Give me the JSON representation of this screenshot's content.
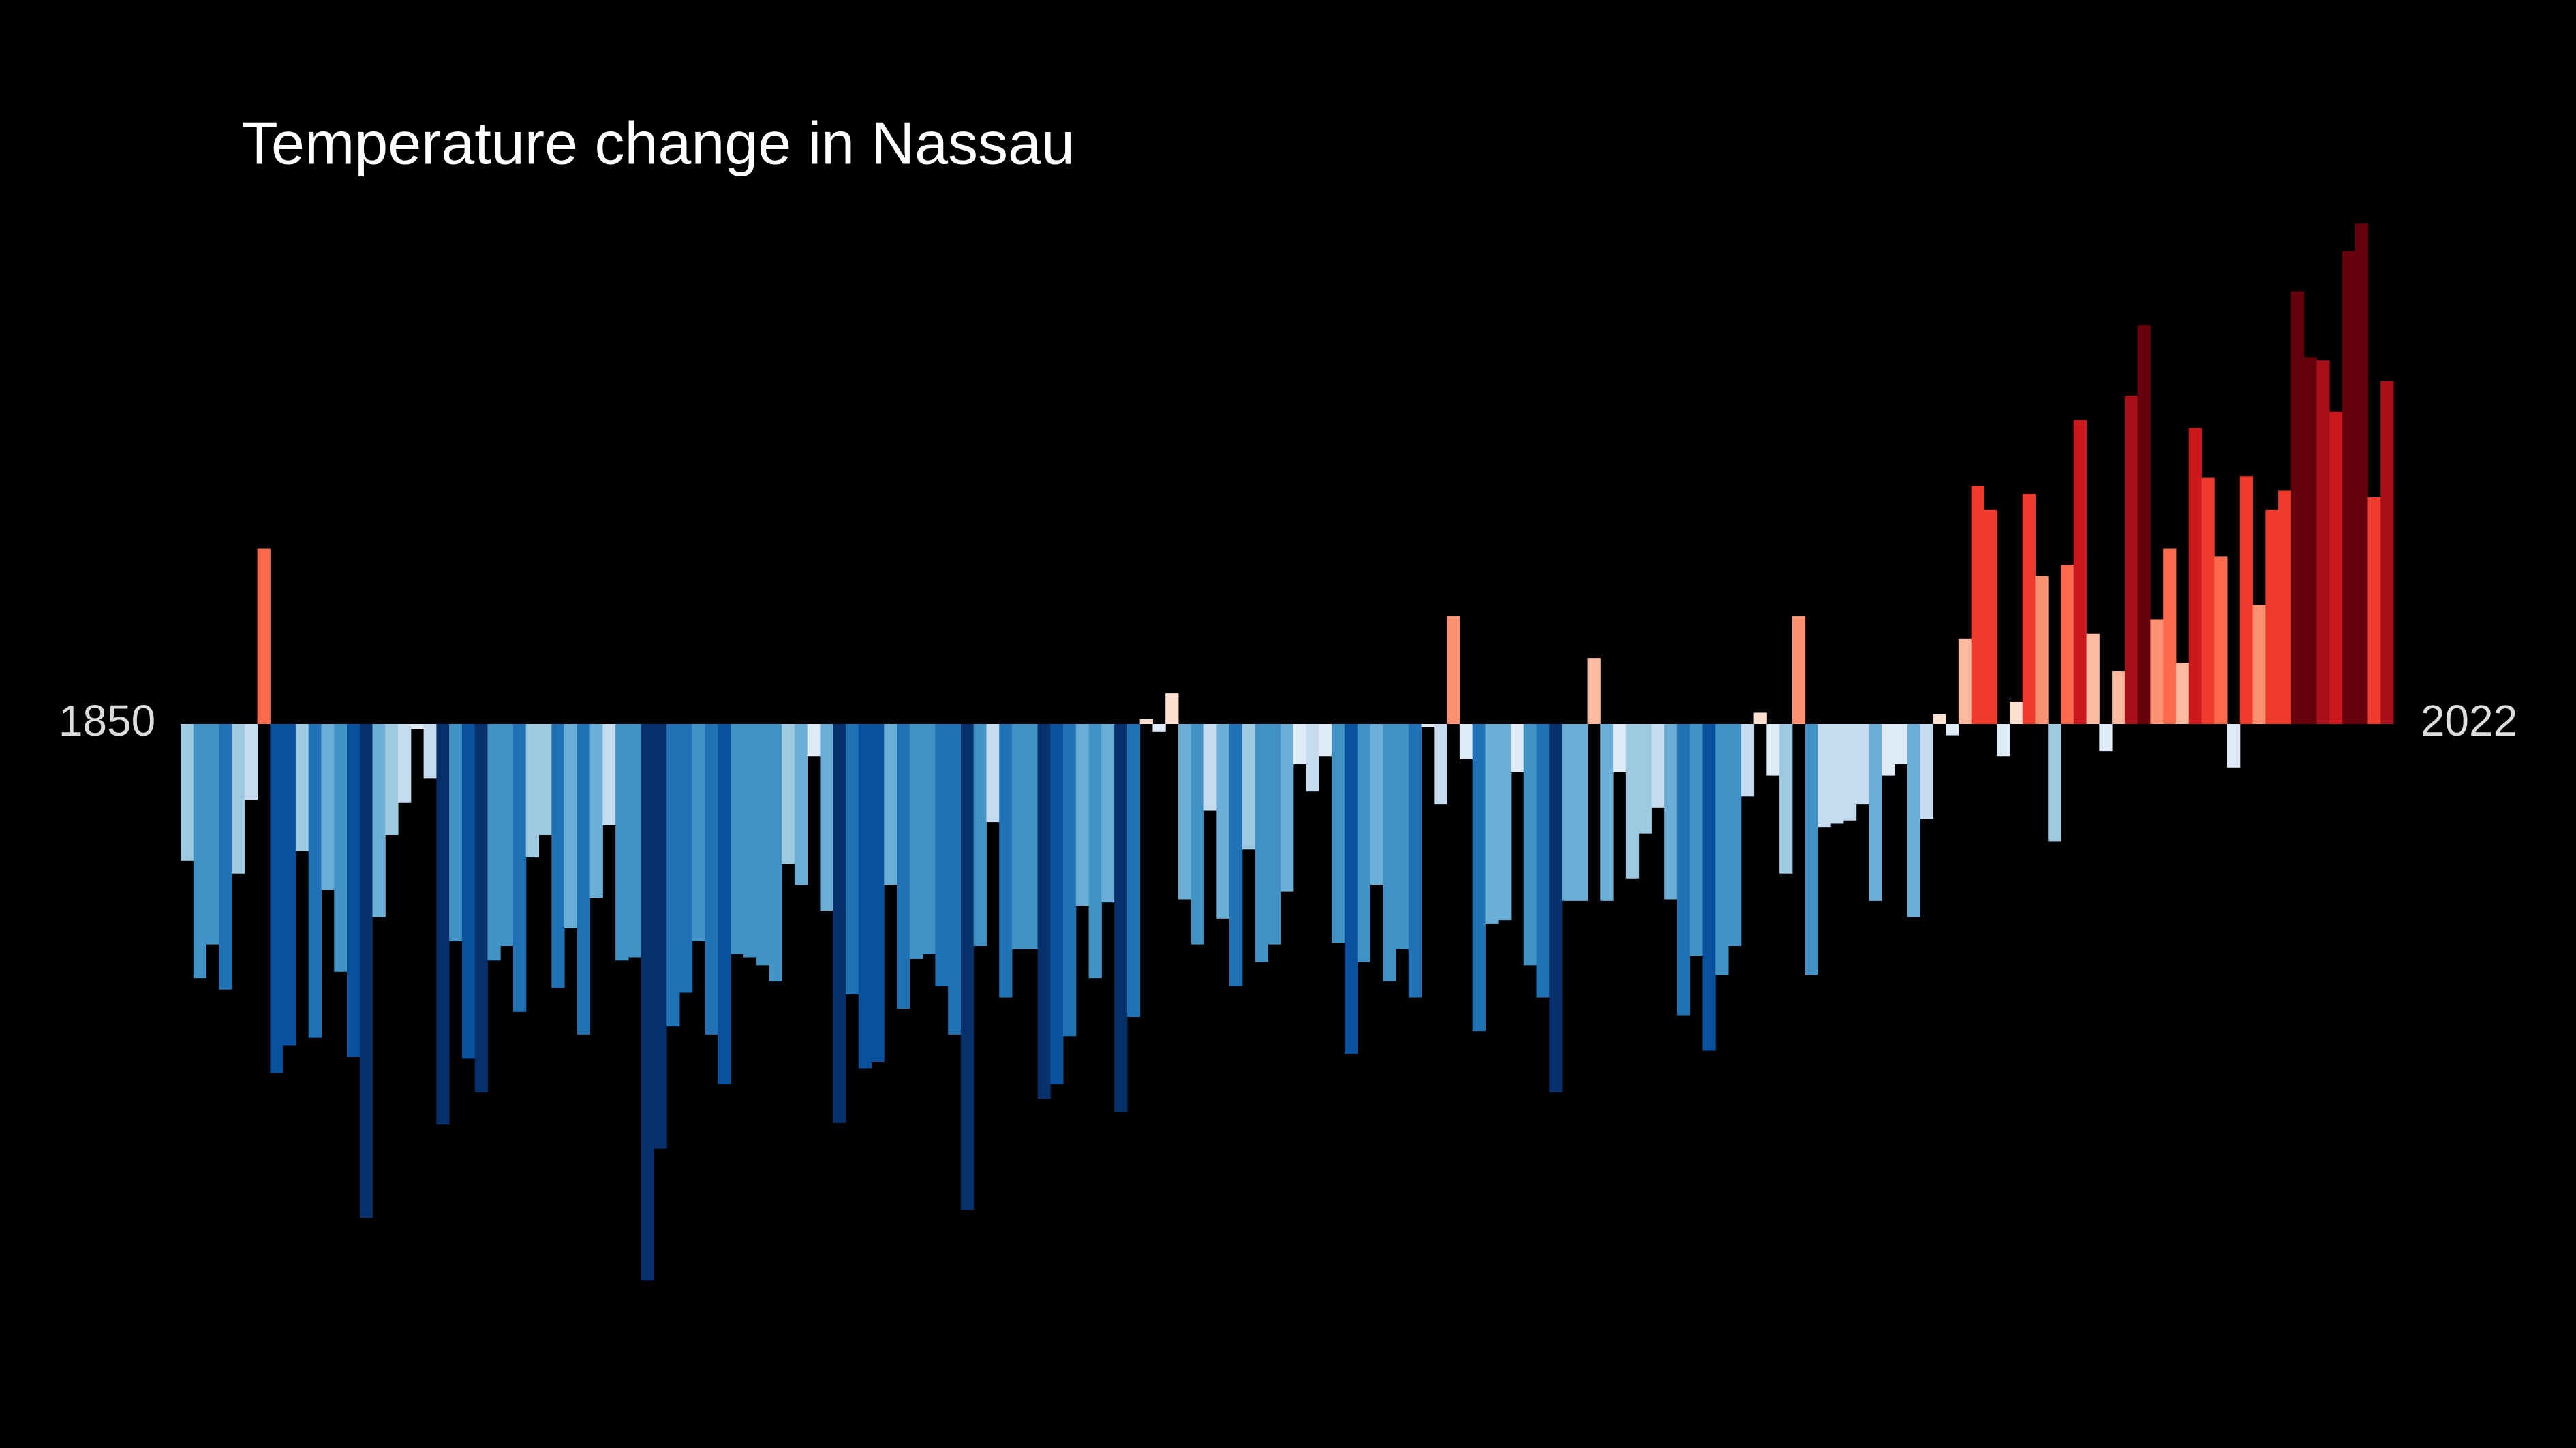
{
  "chart_data": {
    "type": "bar",
    "title": "Temperature change in Nassau",
    "x": [
      1850,
      1851,
      1852,
      1853,
      1854,
      1855,
      1856,
      1857,
      1858,
      1859,
      1860,
      1861,
      1862,
      1863,
      1864,
      1865,
      1866,
      1867,
      1868,
      1869,
      1870,
      1871,
      1872,
      1873,
      1874,
      1875,
      1876,
      1877,
      1878,
      1879,
      1880,
      1881,
      1882,
      1883,
      1884,
      1885,
      1886,
      1887,
      1888,
      1889,
      1890,
      1891,
      1892,
      1893,
      1894,
      1895,
      1896,
      1897,
      1898,
      1899,
      1900,
      1901,
      1902,
      1903,
      1904,
      1905,
      1906,
      1907,
      1908,
      1909,
      1910,
      1911,
      1912,
      1913,
      1914,
      1915,
      1916,
      1917,
      1918,
      1919,
      1920,
      1921,
      1922,
      1923,
      1924,
      1925,
      1926,
      1927,
      1928,
      1929,
      1930,
      1931,
      1932,
      1933,
      1934,
      1935,
      1936,
      1937,
      1938,
      1939,
      1940,
      1941,
      1942,
      1943,
      1944,
      1945,
      1946,
      1947,
      1948,
      1949,
      1950,
      1951,
      1952,
      1953,
      1954,
      1955,
      1956,
      1957,
      1958,
      1959,
      1960,
      1961,
      1962,
      1963,
      1964,
      1965,
      1966,
      1967,
      1968,
      1969,
      1970,
      1971,
      1972,
      1973,
      1974,
      1975,
      1976,
      1977,
      1978,
      1979,
      1980,
      1981,
      1982,
      1983,
      1984,
      1985,
      1986,
      1987,
      1988,
      1989,
      1990,
      1991,
      1992,
      1993,
      1994,
      1995,
      1996,
      1997,
      1998,
      1999,
      2000,
      2001,
      2002,
      2003,
      2004,
      2005,
      2006,
      2007,
      2008,
      2009,
      2010,
      2011,
      2012,
      2013,
      2014,
      2015,
      2016,
      2017,
      2018,
      2019,
      2020,
      2021,
      2022
    ],
    "values": [
      -0.85,
      -1.58,
      -1.37,
      -1.65,
      -0.93,
      -0.47,
      1.09,
      -2.17,
      -2.0,
      -0.79,
      -1.95,
      -1.03,
      -1.54,
      -2.07,
      -3.07,
      -1.2,
      -0.69,
      -0.49,
      -0.03,
      -0.34,
      -2.49,
      -1.35,
      -2.08,
      -2.29,
      -1.47,
      -1.38,
      -1.79,
      -0.83,
      -0.69,
      -1.64,
      -1.27,
      -1.93,
      -1.08,
      -0.63,
      -1.47,
      -1.45,
      -3.46,
      -2.64,
      -1.88,
      -1.67,
      -1.35,
      -1.93,
      -2.24,
      -1.43,
      -1.45,
      -1.5,
      -1.6,
      -0.87,
      -1.0,
      -0.2,
      -1.16,
      -2.48,
      -1.68,
      -2.14,
      -2.1,
      -1.0,
      -1.77,
      -1.46,
      -1.43,
      -1.63,
      -1.93,
      -3.02,
      -1.38,
      -0.61,
      -1.7,
      -1.4,
      -1.4,
      -2.33,
      -2.24,
      -1.94,
      -1.13,
      -1.58,
      -1.11,
      -2.41,
      -1.82,
      0.03,
      -0.05,
      0.19,
      -1.09,
      -1.37,
      -0.54,
      -1.21,
      -1.63,
      -0.78,
      -1.48,
      -1.37,
      -1.04,
      -0.25,
      -0.42,
      -0.2,
      -1.36,
      -2.05,
      -1.48,
      -1.0,
      -1.6,
      -1.4,
      -1.7,
      -0.02,
      -0.5,
      0.67,
      -0.22,
      -1.91,
      -1.24,
      -1.22,
      -0.3,
      -1.5,
      -1.7,
      -2.29,
      -1.1,
      -1.1,
      0.41,
      -1.1,
      -0.3,
      -0.96,
      -0.68,
      -0.52,
      -1.09,
      -1.81,
      -1.44,
      -2.03,
      -1.56,
      -1.38,
      -0.45,
      0.07,
      -0.32,
      -0.93,
      0.67,
      -1.56,
      -0.64,
      -0.62,
      -0.6,
      -0.5,
      -1.1,
      -0.32,
      -0.25,
      -1.2,
      -0.59,
      0.06,
      -0.07,
      0.53,
      1.48,
      1.33,
      -0.2,
      0.14,
      1.43,
      0.92,
      -0.73,
      0.99,
      1.89,
      0.56,
      -0.17,
      0.33,
      2.04,
      2.48,
      0.65,
      1.09,
      0.38,
      1.84,
      1.53,
      1.04,
      -0.27,
      1.54,
      0.74,
      1.33,
      1.45,
      2.69,
      2.28,
      2.26,
      1.94,
      2.94,
      3.11,
      1.41,
      2.13
    ],
    "xticks": [
      1850,
      2022
    ],
    "ylim": [
      -4.5,
      4.5
    ],
    "colormap": [
      "#08306b",
      "#08519c",
      "#2171b5",
      "#4292c6",
      "#6baed6",
      "#9ecae1",
      "#c6dbef",
      "#deebf7",
      "#fee0d2",
      "#fcbba1",
      "#fc9272",
      "#fb6a4a",
      "#ef3b2c",
      "#cb181d",
      "#a50f15",
      "#67000d"
    ],
    "color_range": [
      -2.6,
      2.6
    ]
  }
}
